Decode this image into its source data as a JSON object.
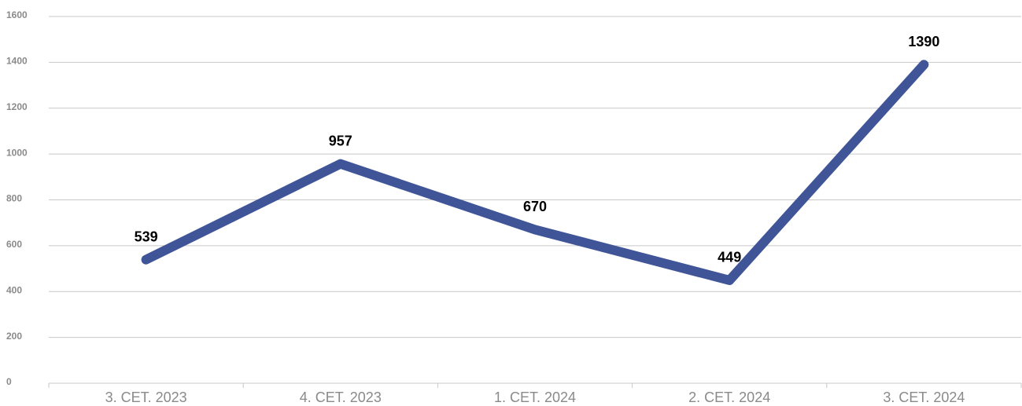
{
  "chart_data": {
    "type": "line",
    "categories": [
      "3. CET. 2023",
      "4. CET. 2023",
      "1. CET. 2024",
      "2. CET. 2024",
      "3. CET. 2024"
    ],
    "values": [
      539,
      957,
      670,
      449,
      1390
    ],
    "color": "#3f5597",
    "ylim": [
      0,
      1600
    ],
    "yticks": [
      0,
      200,
      400,
      600,
      800,
      1000,
      1200,
      1400,
      1600
    ],
    "grid": true
  }
}
